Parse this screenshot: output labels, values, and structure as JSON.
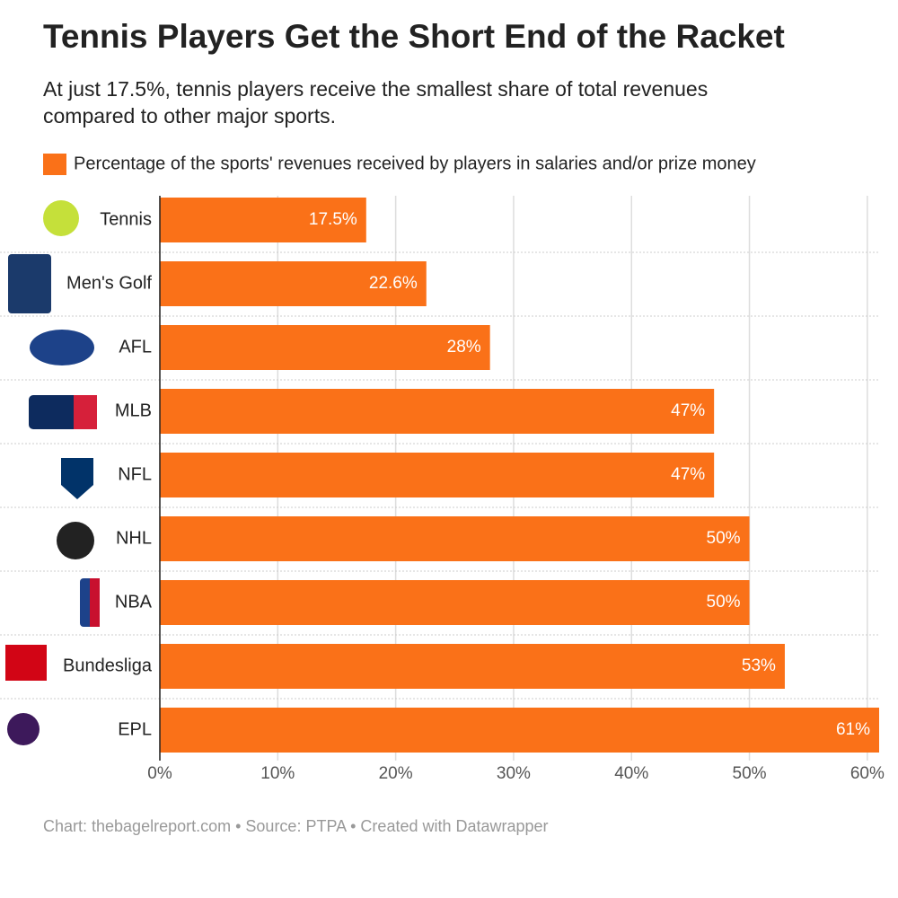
{
  "chart_data": {
    "type": "bar",
    "orientation": "horizontal",
    "title": "Tennis Players Get the Short End of the Racket",
    "subtitle": [
      "At just 17.5%, tennis players receive the smallest share of total revenues",
      "compared to other major sports."
    ],
    "categories": [
      "Tennis",
      "Men's Golf",
      "AFL",
      "MLB",
      "NFL",
      "NHL",
      "NBA",
      "Bundesliga",
      "EPL"
    ],
    "series": [
      {
        "name": "Percentage of the sports' revenues received by players in salaries and/or prize money",
        "color": "#fa7118",
        "values": [
          17.5,
          22.6,
          28,
          47,
          47,
          50,
          50,
          53,
          61
        ],
        "value_labels": [
          "17.5%",
          "22.6%",
          "28%",
          "47%",
          "47%",
          "50%",
          "50%",
          "53%",
          "61%"
        ]
      }
    ],
    "xlim": [
      0,
      61
    ],
    "xticks": [
      {
        "value": 0,
        "label": "0%"
      },
      {
        "value": 10,
        "label": "10%"
      },
      {
        "value": 20,
        "label": "20%"
      },
      {
        "value": 30,
        "label": "30%"
      },
      {
        "value": 40,
        "label": "40%"
      },
      {
        "value": 50,
        "label": "50%"
      },
      {
        "value": 60,
        "label": "60%"
      }
    ],
    "grid": true,
    "footer": "Chart: thebagelreport.com • Source: PTPA • Created with Datawrapper"
  }
}
